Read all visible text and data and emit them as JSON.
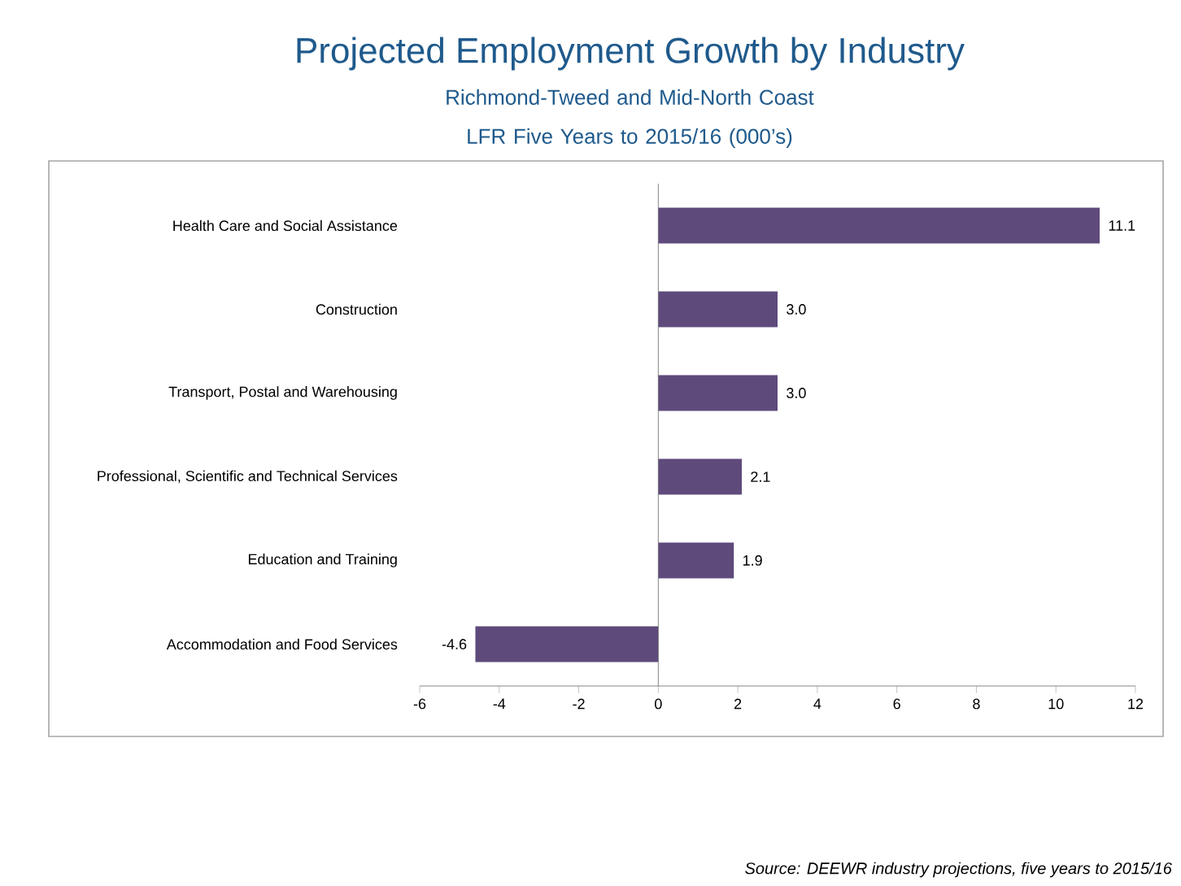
{
  "chart_data": {
    "type": "bar",
    "orientation": "horizontal",
    "title": "Projected Employment Growth by Industry",
    "subtitle": "Richmond-Tweed and Mid-North Coast LFR Five Years to 2015/16 (000’s)",
    "categories": [
      "Health Care and Social Assistance",
      "Construction",
      "Transport, Postal and Warehousing",
      "Professional, Scientific and Technical Services",
      "Education and Training",
      "Accommodation and Food Services"
    ],
    "values": [
      11.1,
      3.0,
      3.0,
      2.1,
      1.9,
      -4.6
    ],
    "value_labels": [
      "11.1",
      "3.0",
      "3.0",
      "2.1",
      "1.9",
      "-4.6"
    ],
    "color": "#5f4a7c",
    "xlim": [
      -6,
      12
    ],
    "xticks": [
      -6,
      -4,
      -2,
      0,
      2,
      4,
      6,
      8,
      10,
      12
    ],
    "annotations": [
      "Source: DEEWR industry projections, five years to 2015/16"
    ]
  }
}
